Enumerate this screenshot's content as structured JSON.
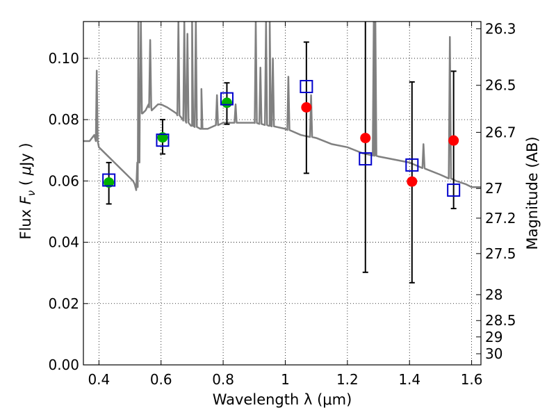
{
  "chart_data": {
    "type": "scatter",
    "xlabel": "Wavelength  λ (μm)",
    "ylabel_parts": [
      "Flux  ",
      "F",
      "ν",
      "  (  ",
      "μ",
      "Jy  )"
    ],
    "y2label": "Magnitude (AB)",
    "xlim": [
      0.35,
      1.63
    ],
    "ylim": [
      0.0,
      0.112
    ],
    "x_ticks": [
      0.4,
      0.6,
      0.8,
      1.0,
      1.2,
      1.4,
      1.6
    ],
    "x_tick_labels": [
      "0.4",
      "0.6",
      "0.8",
      "1",
      "1.2",
      "1.4",
      "1.6"
    ],
    "y_ticks": [
      0.0,
      0.02,
      0.04,
      0.06,
      0.08,
      0.1
    ],
    "y_tick_labels": [
      "0.00",
      "0.02",
      "0.04",
      "0.06",
      "0.08",
      "0.10"
    ],
    "y2_ticks": [
      {
        "label": "26.3",
        "mag": 26.3
      },
      {
        "label": "26.5",
        "mag": 26.5
      },
      {
        "label": "26.7",
        "mag": 26.7
      },
      {
        "label": "27",
        "mag": 27.0
      },
      {
        "label": "27.2",
        "mag": 27.2
      },
      {
        "label": "27.5",
        "mag": 27.5
      },
      {
        "label": "28",
        "mag": 28.0
      },
      {
        "label": "28.5",
        "mag": 28.5
      },
      {
        "label": "29",
        "mag": 29.0
      },
      {
        "label": "30",
        "mag": 30.0
      }
    ],
    "grid": true,
    "colors": {
      "model": "#808080",
      "green_points": "#00b000",
      "red_points": "#ff0000",
      "squares": "#0000cc",
      "errorbars": "#000000"
    },
    "model_spectrum": {
      "x": [
        0.35,
        0.37,
        0.385,
        0.39,
        0.393,
        0.396,
        0.4,
        0.42,
        0.45,
        0.47,
        0.49,
        0.5,
        0.51,
        0.515,
        0.52,
        0.525,
        0.528,
        0.532,
        0.54,
        0.55,
        0.56,
        0.57,
        0.58,
        0.59,
        0.6,
        0.62,
        0.65,
        0.67,
        0.7,
        0.73,
        0.75,
        0.8,
        0.85,
        0.9,
        0.95,
        1.0,
        1.05,
        1.1,
        1.15,
        1.2,
        1.25,
        1.3,
        1.35,
        1.4,
        1.45,
        1.5,
        1.55,
        1.58,
        1.6,
        1.63
      ],
      "y": [
        0.073,
        0.073,
        0.075,
        0.073,
        0.096,
        0.073,
        0.071,
        0.069,
        0.066,
        0.064,
        0.062,
        0.061,
        0.06,
        0.059,
        0.057,
        0.058,
        0.07,
        0.082,
        0.082,
        0.083,
        0.085,
        0.083,
        0.084,
        0.085,
        0.085,
        0.084,
        0.082,
        0.08,
        0.078,
        0.077,
        0.077,
        0.079,
        0.079,
        0.079,
        0.078,
        0.077,
        0.075,
        0.074,
        0.072,
        0.071,
        0.069,
        0.068,
        0.067,
        0.066,
        0.064,
        0.062,
        0.06,
        0.059,
        0.058,
        0.058
      ]
    },
    "model_emission_lines": [
      {
        "x": 0.527,
        "peak": 0.112
      },
      {
        "x": 0.535,
        "peak": 0.112
      },
      {
        "x": 0.565,
        "peak": 0.106
      },
      {
        "x": 0.656,
        "peak": 0.112
      },
      {
        "x": 0.675,
        "peak": 0.112
      },
      {
        "x": 0.685,
        "peak": 0.108
      },
      {
        "x": 0.7,
        "peak": 0.112
      },
      {
        "x": 0.712,
        "peak": 0.112
      },
      {
        "x": 0.73,
        "peak": 0.09
      },
      {
        "x": 0.78,
        "peak": 0.088
      },
      {
        "x": 0.84,
        "peak": 0.085
      },
      {
        "x": 0.905,
        "peak": 0.112
      },
      {
        "x": 0.92,
        "peak": 0.097
      },
      {
        "x": 0.938,
        "peak": 0.112
      },
      {
        "x": 0.95,
        "peak": 0.112
      },
      {
        "x": 0.96,
        "peak": 0.1
      },
      {
        "x": 1.01,
        "peak": 0.094
      },
      {
        "x": 1.083,
        "peak": 0.088
      },
      {
        "x": 1.285,
        "peak": 0.112
      },
      {
        "x": 1.29,
        "peak": 0.112
      },
      {
        "x": 1.445,
        "peak": 0.072
      },
      {
        "x": 1.53,
        "peak": 0.107
      }
    ],
    "series": [
      {
        "marker": "circle-green",
        "x": [
          0.432,
          0.605,
          0.812
        ],
        "y": [
          0.0595,
          0.0742,
          0.0855
        ],
        "yerr_low": [
          0.0525,
          0.0688,
          0.0785
        ],
        "yerr_high": [
          0.066,
          0.08,
          0.092
        ]
      },
      {
        "marker": "circle-red",
        "x": [
          1.068,
          1.258,
          1.408,
          1.542
        ],
        "y": [
          0.084,
          0.074,
          0.0598,
          0.0732
        ],
        "yerr_low": [
          0.0625,
          0.0302,
          0.0268,
          0.051
        ],
        "yerr_high": [
          0.1053,
          0.114,
          0.0923,
          0.0958
        ]
      },
      {
        "marker": "open-square",
        "x": [
          0.432,
          0.605,
          0.812,
          1.068,
          1.258,
          1.408,
          1.542
        ],
        "y": [
          0.0603,
          0.0733,
          0.0868,
          0.0908,
          0.0672,
          0.0652,
          0.057
        ]
      }
    ]
  }
}
